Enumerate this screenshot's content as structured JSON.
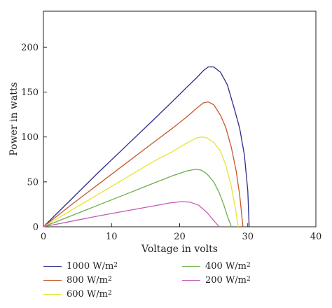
{
  "chart_data": {
    "type": "line",
    "xlabel": "Voltage in volts",
    "ylabel": "Power in watts",
    "xlim": [
      0,
      40
    ],
    "ylim": [
      0,
      240
    ],
    "xticks": [
      0,
      10,
      20,
      30,
      40
    ],
    "yticks": [
      0,
      50,
      100,
      150,
      200
    ],
    "grid": false,
    "legend_position": "bottom",
    "series": [
      {
        "name": "1000 W/m",
        "name_superscript": "2",
        "color": "#2b2b8c",
        "x": [
          0,
          4,
          8,
          12,
          16,
          19,
          21,
          22.5,
          23.5,
          24.2,
          25,
          26,
          27,
          28,
          28.8,
          29.5,
          30,
          30.2
        ],
        "y": [
          0,
          30,
          60,
          89,
          118,
          140,
          155,
          166,
          174,
          178,
          178,
          172,
          158,
          132,
          110,
          80,
          40,
          0
        ]
      },
      {
        "name": "800 W/m",
        "name_superscript": "2",
        "color": "#c8572a",
        "x": [
          0,
          4,
          8,
          12,
          16,
          19,
          21,
          22.5,
          23.5,
          24.2,
          25,
          26,
          26.8,
          27.6,
          28.3,
          28.8,
          29.3
        ],
        "y": [
          0,
          24,
          47,
          70,
          93,
          110,
          122,
          132,
          138,
          139,
          136,
          124,
          110,
          88,
          62,
          36,
          0
        ]
      },
      {
        "name": "600 W/m",
        "name_superscript": "2",
        "color": "#e8e430",
        "x": [
          0,
          4,
          8,
          12,
          16,
          19,
          21,
          22.5,
          23.3,
          24,
          25,
          26,
          26.8,
          27.5,
          28.1,
          28.6
        ],
        "y": [
          0,
          18,
          36,
          54,
          72,
          84,
          93,
          99,
          100,
          99,
          94,
          84,
          68,
          48,
          24,
          0
        ]
      },
      {
        "name": "400 W/m",
        "name_superscript": "2",
        "color": "#6cae4a",
        "x": [
          0,
          4,
          8,
          12,
          16,
          19,
          21,
          22.3,
          23.2,
          24,
          25,
          25.8,
          26.5,
          27.1,
          27.6
        ],
        "y": [
          0,
          12,
          24,
          36,
          48,
          57,
          62,
          64,
          63,
          59,
          50,
          38,
          24,
          10,
          0
        ]
      },
      {
        "name": "200 W/m",
        "name_superscript": "2",
        "color": "#c05ab8",
        "x": [
          0,
          4,
          8,
          12,
          16,
          18.5,
          20.2,
          21.5,
          22.8,
          24,
          25,
          25.8
        ],
        "y": [
          0,
          6,
          12,
          17.5,
          23,
          26.5,
          28,
          27.5,
          24,
          16,
          7,
          0
        ]
      }
    ]
  }
}
